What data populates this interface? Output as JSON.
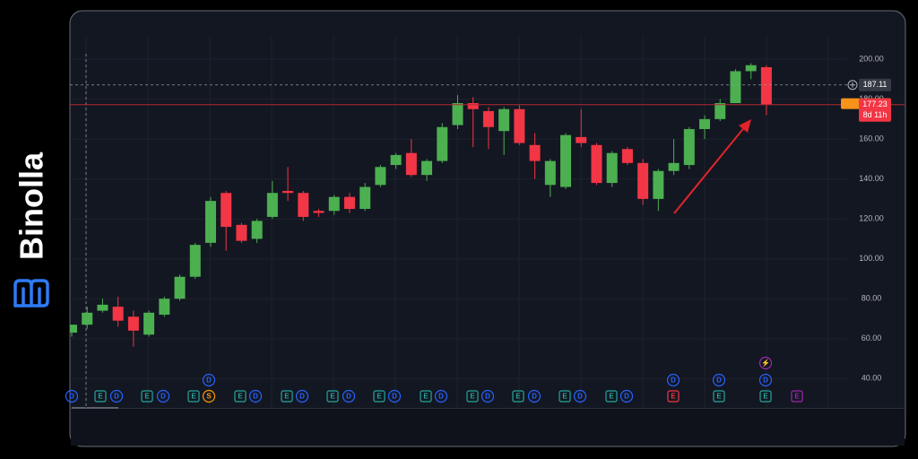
{
  "brand": "Binolla",
  "chart_data": {
    "type": "candlestick",
    "up_color": "#4caf50",
    "down_color": "#f23645",
    "open": [
      63,
      67,
      74,
      76,
      71,
      62,
      72,
      80,
      91,
      108,
      133,
      117,
      110,
      121,
      134,
      133,
      124,
      124,
      131,
      125,
      137,
      147,
      153,
      142,
      149,
      167,
      178,
      174,
      164,
      175,
      157,
      137,
      136,
      161,
      157,
      138,
      155,
      148,
      130,
      144,
      147,
      165,
      170,
      178,
      194,
      196
    ],
    "high": [
      67,
      76,
      80,
      81,
      74,
      74,
      81,
      92,
      108,
      131,
      134,
      118,
      120,
      139,
      146,
      134,
      125,
      132,
      133,
      138,
      147,
      153,
      160,
      150,
      168,
      182,
      181,
      176,
      176,
      177,
      163,
      150,
      163,
      175,
      158,
      154,
      156,
      150,
      145,
      160,
      166,
      172,
      180,
      195,
      198,
      197
    ],
    "low": [
      61,
      65,
      73,
      66,
      56,
      61,
      71,
      79,
      90,
      106,
      104,
      108,
      108,
      120,
      129,
      119,
      121,
      122,
      123,
      124,
      136,
      145,
      141,
      139,
      148,
      165,
      156,
      155,
      152,
      157,
      140,
      131,
      135,
      156,
      137,
      136,
      147,
      127,
      124,
      142,
      145,
      160,
      169,
      178,
      190,
      172
    ],
    "close": [
      67,
      73,
      77,
      69,
      64,
      73,
      80,
      91,
      107,
      129,
      116,
      109,
      119,
      133,
      133,
      121,
      123,
      131,
      125,
      136,
      146,
      152,
      142,
      149,
      166,
      178,
      175,
      166,
      175,
      158,
      149,
      149,
      162,
      158,
      138,
      153,
      148,
      130,
      144,
      148,
      165,
      170,
      178,
      194,
      197,
      177.23
    ],
    "ylim": [
      25.3,
      211.7
    ],
    "yticks": [
      {
        "value": 40,
        "label": "40.00"
      },
      {
        "value": 60,
        "label": "60.00"
      },
      {
        "value": 80,
        "label": "80.00"
      },
      {
        "value": 100,
        "label": "100.00"
      },
      {
        "value": 120,
        "label": "120.00"
      },
      {
        "value": 140,
        "label": "140.00"
      },
      {
        "value": 160,
        "label": "160.00"
      },
      {
        "value": 180,
        "label": "180.00"
      },
      {
        "value": 200,
        "label": "200.00"
      }
    ],
    "grid": true,
    "crosshair_price": 187.11,
    "reference_price": 178.18,
    "last_price": 177.23,
    "countdown": "8d 11h",
    "markers": [
      {
        "label": "D",
        "color": "#2962ff"
      },
      {
        "label": "E",
        "color": "#26a69a"
      },
      {
        "label": "D",
        "color": "#2962ff"
      },
      {
        "label": "E",
        "color": "#26a69a"
      },
      {
        "label": "D",
        "color": "#2962ff"
      },
      {
        "label": "E",
        "color": "#26a69a"
      },
      {
        "label": "S",
        "color": "#ff9800"
      },
      {
        "label": "E",
        "color": "#26a69a"
      },
      {
        "label": "D",
        "color": "#2962ff"
      },
      {
        "label": "E",
        "color": "#26a69a"
      },
      {
        "label": "D",
        "color": "#2962ff"
      },
      {
        "label": "E",
        "color": "#26a69a"
      },
      {
        "label": "D",
        "color": "#2962ff"
      },
      {
        "label": "E",
        "color": "#26a69a"
      },
      {
        "label": "D",
        "color": "#2962ff"
      },
      {
        "label": "E",
        "color": "#26a69a"
      },
      {
        "label": "D",
        "color": "#2962ff"
      },
      {
        "label": "E",
        "color": "#26a69a"
      },
      {
        "label": "D",
        "color": "#2962ff"
      },
      {
        "label": "E",
        "color": "#26a69a"
      },
      {
        "label": "D",
        "color": "#2962ff"
      },
      {
        "label": "E",
        "color": "#26a69a"
      },
      {
        "label": "D",
        "color": "#2962ff"
      },
      {
        "label": "E",
        "color": "#26a69a"
      },
      {
        "label": "D",
        "color": "#2962ff"
      },
      {
        "label": "E",
        "color": "#f23645"
      },
      {
        "label": "E",
        "color": "#26a69a"
      },
      {
        "label": "E",
        "color": "#26a69a"
      },
      {
        "label": "E",
        "color": "#9c27b0"
      },
      {
        "label": "D",
        "color": "#2962ff"
      },
      {
        "label": "D",
        "color": "#2962ff"
      },
      {
        "label": "D",
        "color": "#2962ff"
      },
      {
        "label": "D",
        "color": "#2962ff"
      },
      {
        "label": "⚡",
        "color": "#9c27b0"
      }
    ]
  }
}
